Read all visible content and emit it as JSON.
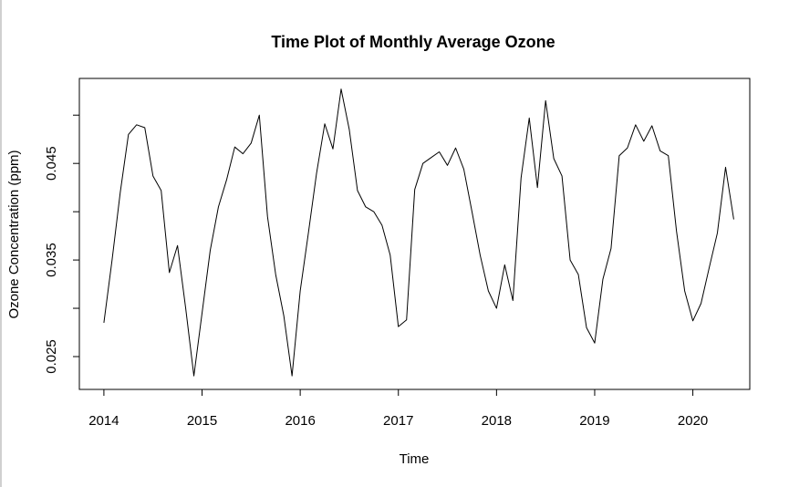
{
  "chart_data": {
    "type": "line",
    "title": "Time Plot of Monthly Average Ozone",
    "xlabel": "Time",
    "ylabel": "Ozone Concentration (ppm)",
    "x_ticks": [
      2014,
      2015,
      2016,
      2017,
      2018,
      2019,
      2020
    ],
    "x_tick_labels": [
      "2014",
      "2015",
      "2016",
      "2017",
      "2018",
      "2019",
      "2020"
    ],
    "y_ticks": [
      0.025,
      0.03,
      0.035,
      0.04,
      0.045,
      0.05
    ],
    "y_tick_labels": [
      "0.025",
      "",
      "0.035",
      "",
      "0.045",
      ""
    ],
    "xlim": [
      2013.75,
      2020.58
    ],
    "ylim": [
      0.0216,
      0.0538
    ],
    "start_year": 2014,
    "start_month": 1,
    "frequency": 12,
    "grid": false,
    "color": "#000000",
    "values": [
      0.0285,
      0.035,
      0.042,
      0.048,
      0.049,
      0.0487,
      0.0437,
      0.0422,
      0.0337,
      0.0365,
      0.03,
      0.023,
      0.0295,
      0.036,
      0.0405,
      0.0433,
      0.0467,
      0.046,
      0.0471,
      0.05,
      0.0395,
      0.0335,
      0.0292,
      0.023,
      0.0318,
      0.0378,
      0.044,
      0.0491,
      0.0465,
      0.0527,
      0.0485,
      0.0422,
      0.0405,
      0.04,
      0.0386,
      0.0355,
      0.0281,
      0.0288,
      0.0423,
      0.045,
      0.0456,
      0.0462,
      0.0448,
      0.0466,
      0.0444,
      0.04,
      0.0355,
      0.0318,
      0.03,
      0.0345,
      0.0308,
      0.0435,
      0.0497,
      0.0425,
      0.0515,
      0.0455,
      0.0437,
      0.035,
      0.0335,
      0.028,
      0.0264,
      0.033,
      0.0362,
      0.0458,
      0.0466,
      0.049,
      0.0473,
      0.0489,
      0.0463,
      0.0458,
      0.038,
      0.0318,
      0.0287,
      0.0305,
      0.0342,
      0.0378,
      0.0446,
      0.0392
    ]
  }
}
